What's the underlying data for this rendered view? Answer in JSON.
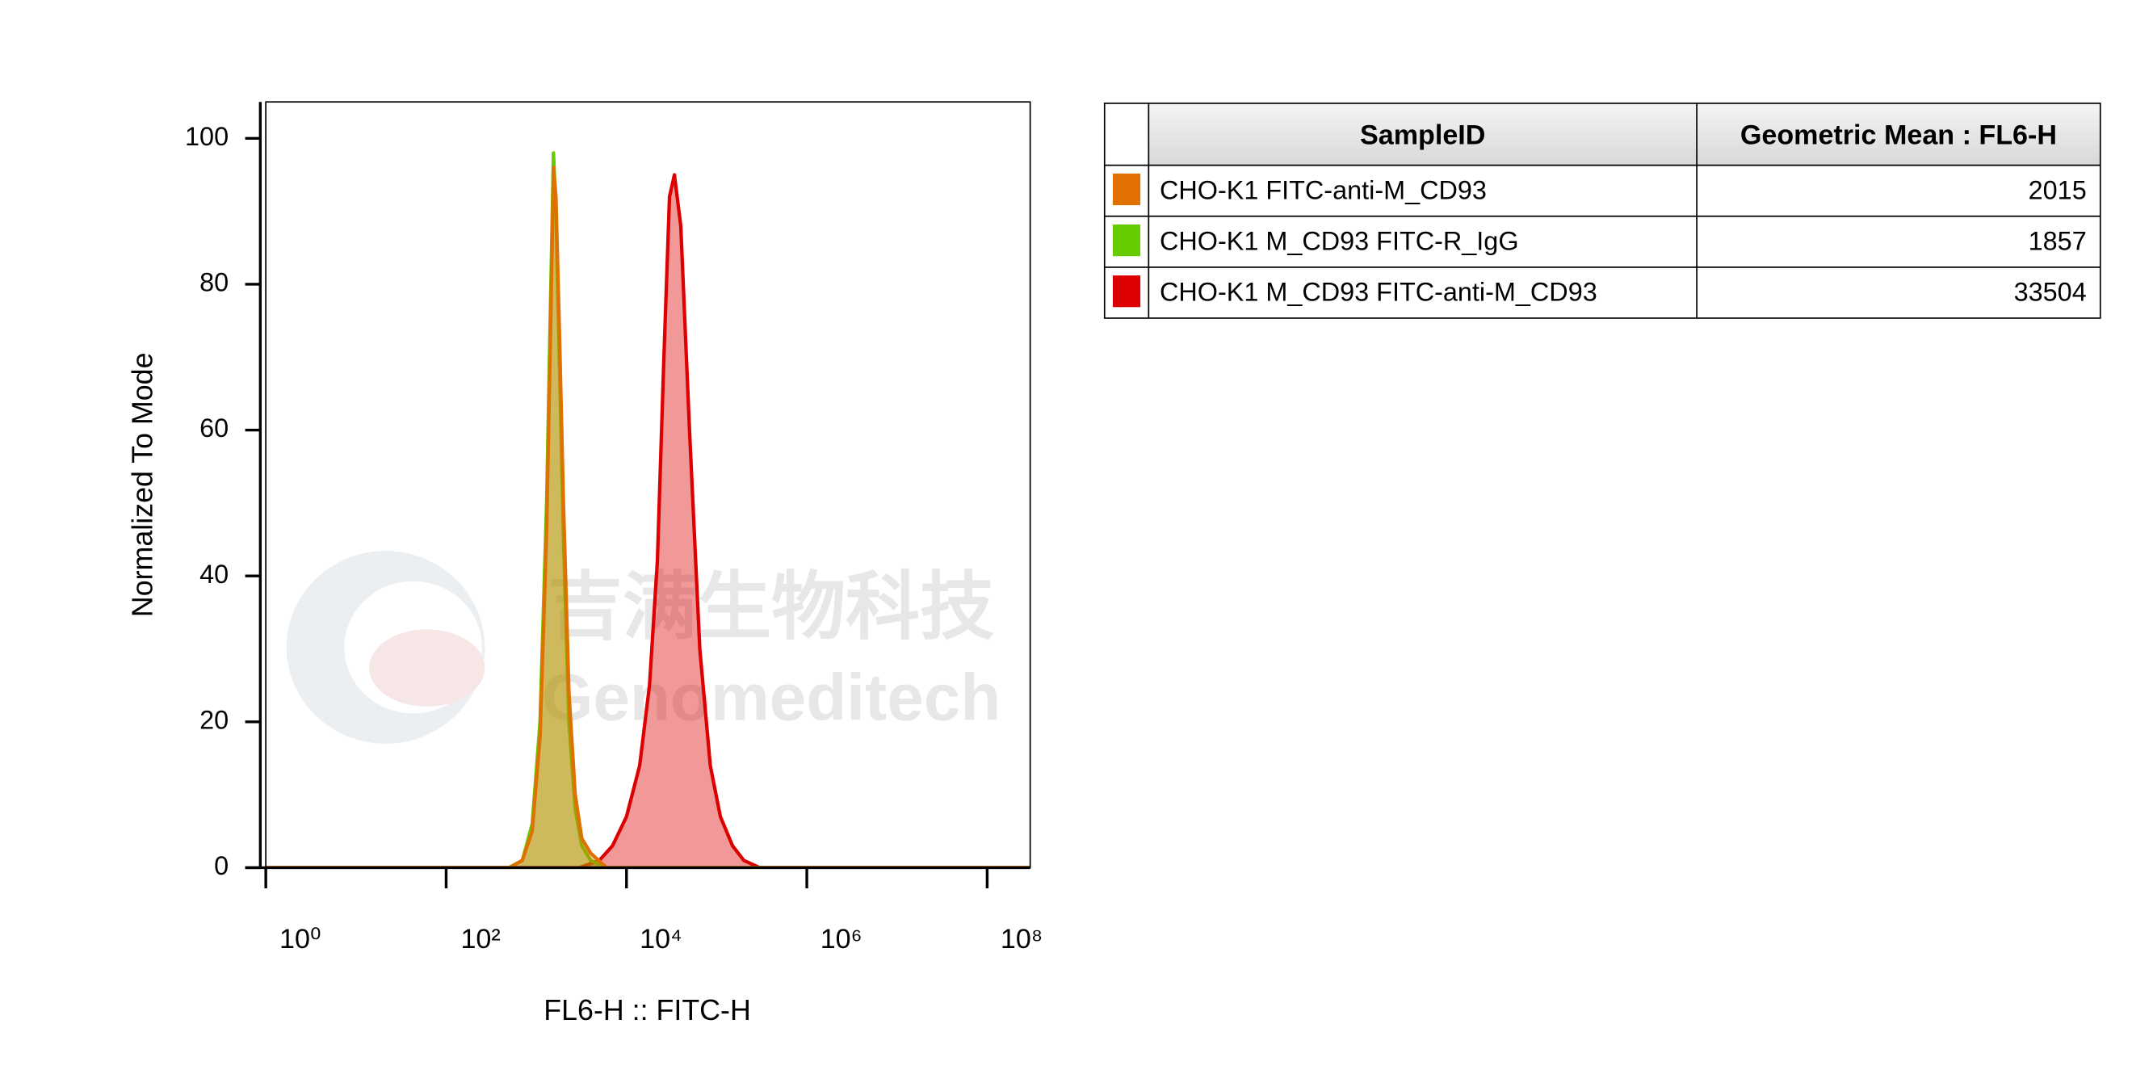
{
  "chart_data": {
    "type": "histogram-overlay",
    "xlabel": "FL6-H :: FITC-H",
    "ylabel": "Normalized To Mode",
    "xscale": "log",
    "xlim": [
      1,
      300000000
    ],
    "ylim": [
      0,
      105
    ],
    "xticks": [
      {
        "value": 1,
        "label": "10⁰"
      },
      {
        "value": 100,
        "label": "10²"
      },
      {
        "value": 10000,
        "label": "10⁴"
      },
      {
        "value": 1000000,
        "label": "10⁶"
      },
      {
        "value": 100000000,
        "label": "10⁸"
      }
    ],
    "yticks": [
      0,
      20,
      40,
      60,
      80,
      100
    ],
    "watermark": [
      "吉满生物科技",
      "Genomeditech"
    ],
    "series": [
      {
        "name": "CHO-K1 M_CD93 FITC-anti-M_CD93",
        "color": "#dd0000",
        "x": [
          1,
          3000,
          5000,
          7000,
          10000,
          14000,
          18000,
          22000,
          26000,
          30000,
          34000,
          40000,
          50000,
          65000,
          85000,
          110000,
          150000,
          200000,
          300000,
          300000000
        ],
        "values": [
          0,
          0,
          1,
          3,
          7,
          14,
          25,
          42,
          70,
          92,
          95,
          88,
          60,
          30,
          14,
          7,
          3,
          1,
          0,
          0
        ]
      },
      {
        "name": "CHO-K1 M_CD93 FITC-R_IgG",
        "color": "#66cc00",
        "x": [
          1,
          500,
          700,
          900,
          1100,
          1300,
          1450,
          1550,
          1650,
          1800,
          2000,
          2300,
          2700,
          3200,
          4000,
          6000,
          300000000
        ],
        "values": [
          0,
          0,
          1,
          6,
          20,
          50,
          80,
          98,
          90,
          70,
          45,
          20,
          8,
          3,
          1,
          0,
          0
        ]
      },
      {
        "name": "CHO-K1 FITC-anti-M_CD93",
        "color": "#e07000",
        "x": [
          1,
          500,
          700,
          900,
          1100,
          1300,
          1450,
          1550,
          1650,
          1800,
          2000,
          2300,
          2700,
          3200,
          4000,
          6000,
          300000000
        ],
        "values": [
          0,
          0,
          1,
          5,
          18,
          46,
          76,
          96,
          92,
          74,
          50,
          24,
          10,
          4,
          2,
          0,
          0
        ]
      }
    ]
  },
  "table": {
    "header": [
      "SampleID",
      "Geometric Mean : FL6-H"
    ],
    "rows": [
      {
        "color": "#e07000",
        "name": "CHO-K1 FITC-anti-M_CD93",
        "value": "2015"
      },
      {
        "color": "#66cc00",
        "name": "CHO-K1 M_CD93 FITC-R_IgG",
        "value": "1857"
      },
      {
        "color": "#dd0000",
        "name": "CHO-K1 M_CD93 FITC-anti-M_CD93",
        "value": "33504"
      }
    ]
  }
}
